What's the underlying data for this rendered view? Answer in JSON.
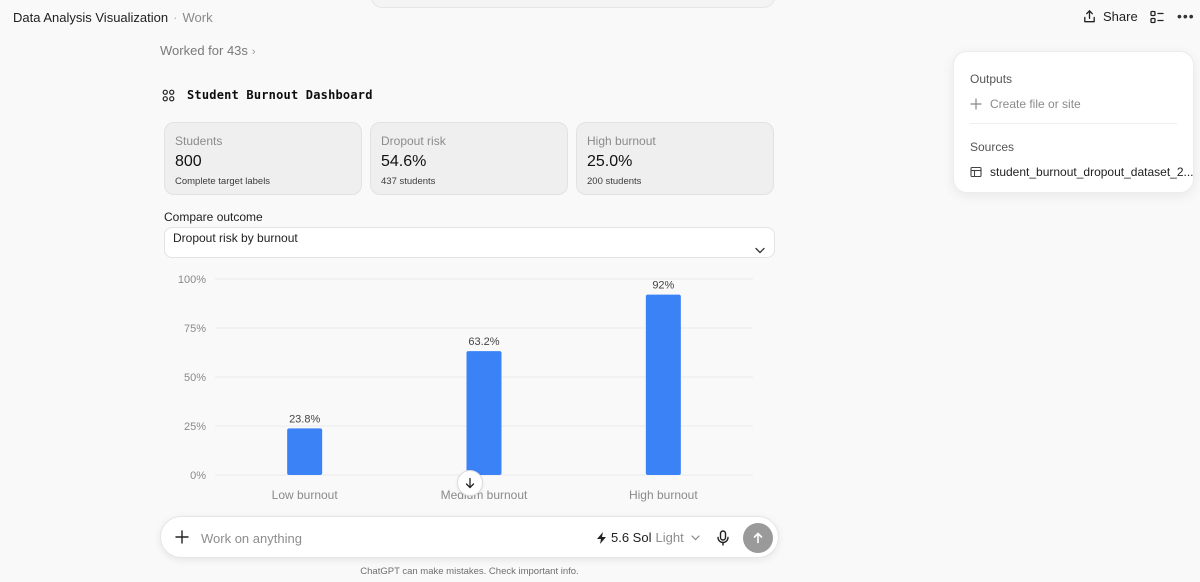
{
  "header": {
    "title": "Data Analysis Visualization",
    "separator": "·",
    "subtitle": "Work",
    "share_label": "Share"
  },
  "worked_label": "Worked for 43s",
  "dashboard": {
    "title": "Student Burnout Dashboard",
    "cards": [
      {
        "label": "Students",
        "value": "800",
        "note": "Complete target labels"
      },
      {
        "label": "Dropout risk",
        "value": "54.6%",
        "note": "437 students"
      },
      {
        "label": "High burnout",
        "value": "25.0%",
        "note": "200 students"
      }
    ],
    "compare_label": "Compare outcome",
    "compare_selected": "Dropout risk by burnout"
  },
  "chart_data": {
    "type": "bar",
    "categories": [
      "Low burnout",
      "Medium burnout",
      "High burnout"
    ],
    "values": [
      23.8,
      63.2,
      92
    ],
    "value_labels": [
      "23.8%",
      "63.2%",
      "92%"
    ],
    "yticks": [
      "0%",
      "25%",
      "50%",
      "75%",
      "100%"
    ],
    "ylim": [
      0,
      100
    ],
    "grid": true,
    "bar_color": "#3b82f6"
  },
  "composer": {
    "placeholder": "Work on anything",
    "model_name": "5.6 Sol",
    "model_mode": "Light"
  },
  "disclaimer": "ChatGPT can make mistakes. Check important info.",
  "side_panel": {
    "outputs_title": "Outputs",
    "create_label": "Create file or site",
    "sources_title": "Sources",
    "source_file": "student_burnout_dropout_dataset_2..."
  }
}
